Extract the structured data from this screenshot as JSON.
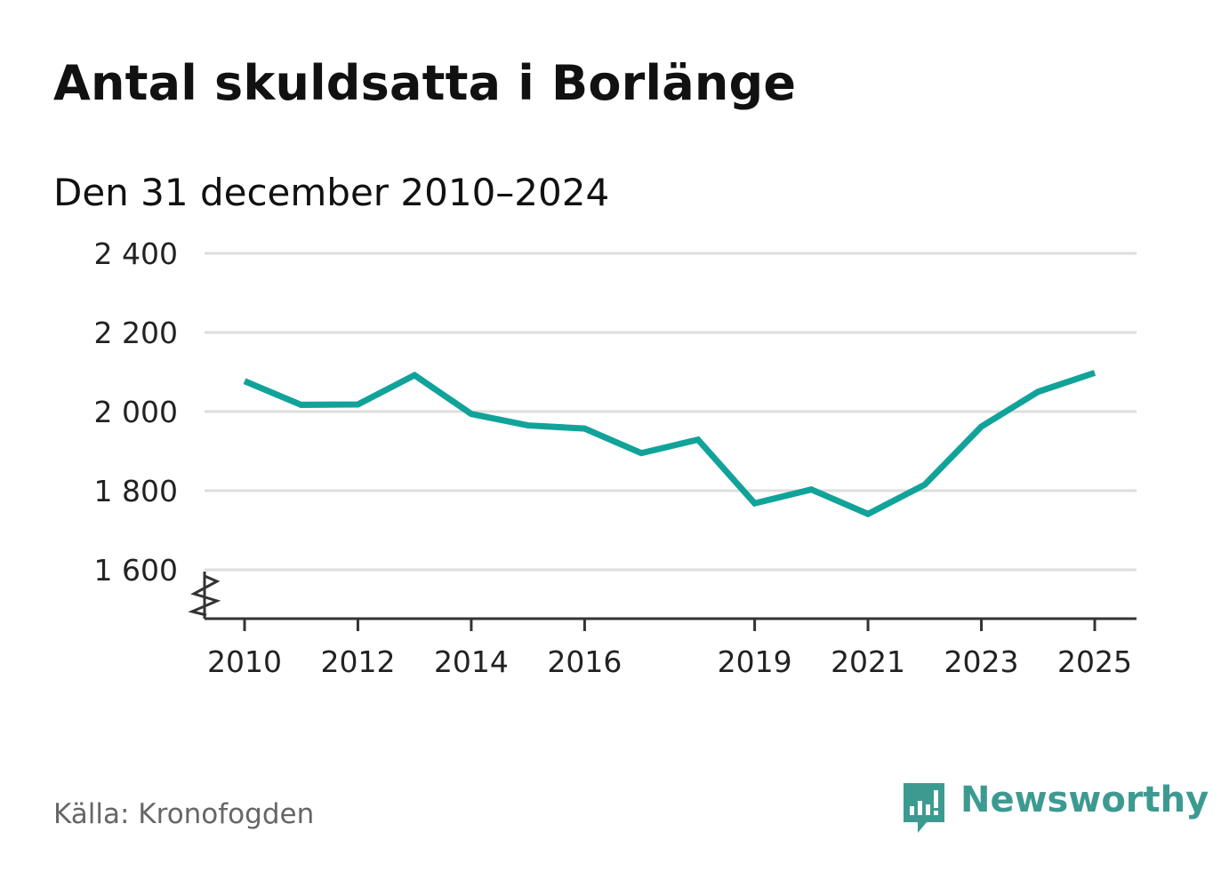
{
  "title": "Antal skuldsatta i Borlänge",
  "subtitle": "Den 31 december 2010–2024",
  "source": "Källa: Kronofogden",
  "brand": {
    "name": "Newsworthy",
    "color": "#3d9a91",
    "icon": "newsworthy-logo-icon"
  },
  "colors": {
    "line": "#11a39a",
    "grid": "#dddddd",
    "axis": "#333333"
  },
  "chart_data": {
    "type": "line",
    "title": "Antal skuldsatta i Borlänge",
    "subtitle": "Den 31 december 2010–2024",
    "xlabel": "",
    "ylabel": "",
    "x": [
      2010,
      2011,
      2012,
      2013,
      2014,
      2015,
      2016,
      2017,
      2018,
      2019,
      2020,
      2021,
      2022,
      2023,
      2024,
      2025
    ],
    "series": [
      {
        "name": "Antal skuldsatta",
        "values": [
          2077,
          2017,
          2018,
          2092,
          1994,
          1965,
          1957,
          1895,
          1929,
          1768,
          1803,
          1741,
          1815,
          1962,
          2050,
          2098
        ]
      }
    ],
    "xlim": [
      2010,
      2025
    ],
    "ylim": [
      1600,
      2400
    ],
    "y_ticks": [
      1600,
      1800,
      2000,
      2200,
      2400
    ],
    "y_tick_labels": [
      "1 600",
      "1 800",
      "2 000",
      "2 200",
      "2 400"
    ],
    "x_ticks": [
      2010,
      2012,
      2014,
      2016,
      2019,
      2021,
      2023,
      2025
    ],
    "x_tick_labels": [
      "2010",
      "2012",
      "2014",
      "2016",
      "2019",
      "2021",
      "2023",
      "2025"
    ],
    "grid": true,
    "axis_break": true,
    "legend": "none"
  }
}
